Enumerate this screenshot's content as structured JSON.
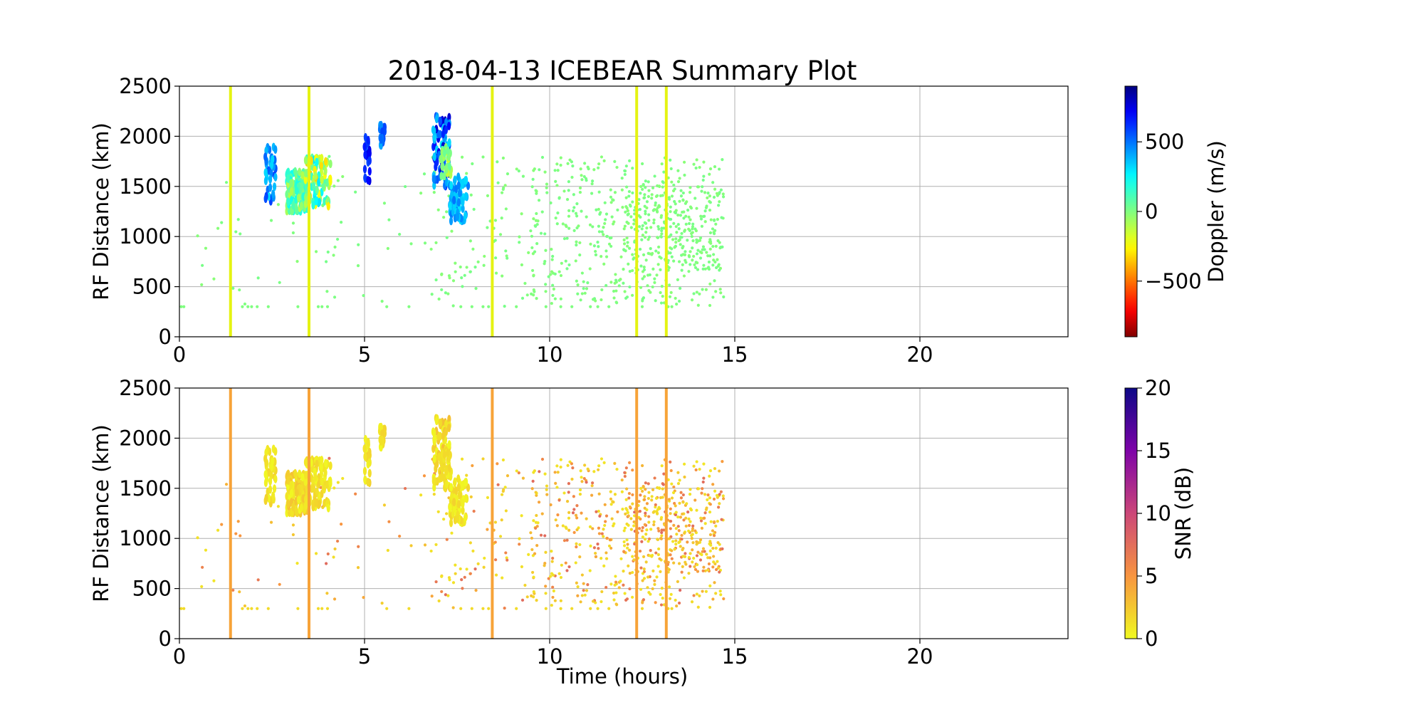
{
  "figure": {
    "title": "2018-04-13 ICEBEAR Summary Plot",
    "xlabel": "Time (hours)"
  },
  "chart_data": [
    {
      "type": "scatter",
      "panel": "top",
      "title": "2018-04-13 ICEBEAR Summary Plot",
      "xlabel": "",
      "ylabel": "RF Distance (km)",
      "xlim": [
        0,
        24
      ],
      "ylim": [
        0,
        2500
      ],
      "xticks": [
        0,
        5,
        10,
        15,
        20
      ],
      "yticks": [
        0,
        500,
        1000,
        1500,
        2000,
        2500
      ],
      "grid": true,
      "color_variable": "Doppler",
      "colorbar": {
        "label": "Doppler (m/s)",
        "range": [
          -900,
          900
        ],
        "ticks": [
          -500,
          0,
          500
        ],
        "tick_labels": [
          "−500",
          "0",
          "500"
        ],
        "colormap": "jet"
      },
      "vertical_lines_hours": [
        1.38,
        3.5,
        8.45,
        12.35,
        13.15
      ],
      "vertical_line_color": "#e5f312",
      "background_point_value": 0,
      "clusters": [
        {
          "t": [
            2.3,
            2.6
          ],
          "r": [
            1350,
            1900
          ],
          "n": 40,
          "v": [
            300,
            600
          ]
        },
        {
          "t": [
            2.9,
            3.5
          ],
          "r": [
            1250,
            1650
          ],
          "n": 140,
          "v": [
            -100,
            250
          ]
        },
        {
          "t": [
            3.4,
            4.1
          ],
          "r": [
            1300,
            1800
          ],
          "n": 90,
          "v": [
            -350,
            300
          ]
        },
        {
          "t": [
            5.0,
            5.15
          ],
          "r": [
            1550,
            1990
          ],
          "n": 25,
          "v": [
            550,
            750
          ]
        },
        {
          "t": [
            5.4,
            5.55
          ],
          "r": [
            1900,
            2120
          ],
          "n": 15,
          "v": [
            400,
            600
          ]
        },
        {
          "t": [
            6.85,
            7.3
          ],
          "r": [
            1500,
            2200
          ],
          "n": 80,
          "v": [
            300,
            800
          ]
        },
        {
          "t": [
            7.05,
            7.35
          ],
          "r": [
            1600,
            1900
          ],
          "n": 30,
          "v": [
            -200,
            100
          ]
        },
        {
          "t": [
            7.3,
            7.8
          ],
          "r": [
            1150,
            1600
          ],
          "n": 70,
          "v": [
            300,
            500
          ]
        }
      ]
    },
    {
      "type": "scatter",
      "panel": "bottom",
      "xlabel": "Time (hours)",
      "ylabel": "RF Distance (km)",
      "xlim": [
        0,
        24
      ],
      "ylim": [
        0,
        2500
      ],
      "xticks": [
        0,
        5,
        10,
        15,
        20
      ],
      "yticks": [
        0,
        500,
        1000,
        1500,
        2000,
        2500
      ],
      "grid": true,
      "color_variable": "SNR",
      "colorbar": {
        "label": "SNR (dB)",
        "range": [
          0,
          20
        ],
        "ticks": [
          0,
          5,
          10,
          15,
          20
        ],
        "tick_labels": [
          "0",
          "5",
          "10",
          "15",
          "20"
        ],
        "colormap": "plasma_r"
      },
      "vertical_lines_hours": [
        1.38,
        3.5,
        8.45,
        12.35,
        13.15
      ],
      "vertical_line_color": "#f7a338",
      "background_point_snr_range": [
        1,
        8
      ],
      "clusters": [
        {
          "t": [
            2.3,
            2.6
          ],
          "r": [
            1350,
            1900
          ],
          "n": 40,
          "v": [
            0,
            2
          ]
        },
        {
          "t": [
            2.9,
            3.5
          ],
          "r": [
            1250,
            1650
          ],
          "n": 140,
          "v": [
            0,
            3
          ]
        },
        {
          "t": [
            3.4,
            4.1
          ],
          "r": [
            1300,
            1800
          ],
          "n": 90,
          "v": [
            0,
            2
          ]
        },
        {
          "t": [
            5.0,
            5.15
          ],
          "r": [
            1550,
            1990
          ],
          "n": 25,
          "v": [
            0,
            2
          ]
        },
        {
          "t": [
            5.4,
            5.55
          ],
          "r": [
            1900,
            2120
          ],
          "n": 15,
          "v": [
            0,
            2
          ]
        },
        {
          "t": [
            6.85,
            7.3
          ],
          "r": [
            1500,
            2200
          ],
          "n": 80,
          "v": [
            0,
            3
          ]
        },
        {
          "t": [
            7.05,
            7.35
          ],
          "r": [
            1600,
            1900
          ],
          "n": 30,
          "v": [
            0,
            2
          ]
        },
        {
          "t": [
            7.3,
            7.8
          ],
          "r": [
            1150,
            1600
          ],
          "n": 70,
          "v": [
            0,
            2
          ]
        }
      ]
    }
  ],
  "background_scatter": {
    "bands": [
      {
        "t": [
          0,
          2.2
        ],
        "r": [
          300,
          1750
        ],
        "n": 15
      },
      {
        "t": [
          2.2,
          6.8
        ],
        "r": [
          300,
          1800
        ],
        "n": 40
      },
      {
        "t": [
          6.8,
          9.5
        ],
        "r": [
          300,
          1800
        ],
        "n": 90
      },
      {
        "t": [
          9.5,
          14.7
        ],
        "r": [
          300,
          1800
        ],
        "n": 420
      },
      {
        "t": [
          12.0,
          14.7
        ],
        "r": [
          650,
          1500
        ],
        "n": 240
      }
    ],
    "floor_points_hours": [
      0.05,
      0.12,
      1.7,
      1.85,
      1.95,
      2.1,
      2.4,
      3.2,
      3.75,
      3.85,
      4.0,
      5.6,
      6.2,
      7.6,
      7.9,
      8.2,
      8.35,
      9.1,
      9.9,
      10.3,
      10.6,
      11.1,
      11.3,
      11.6,
      12.5,
      13.2,
      13.3
    ],
    "floor_range_km": 300
  }
}
